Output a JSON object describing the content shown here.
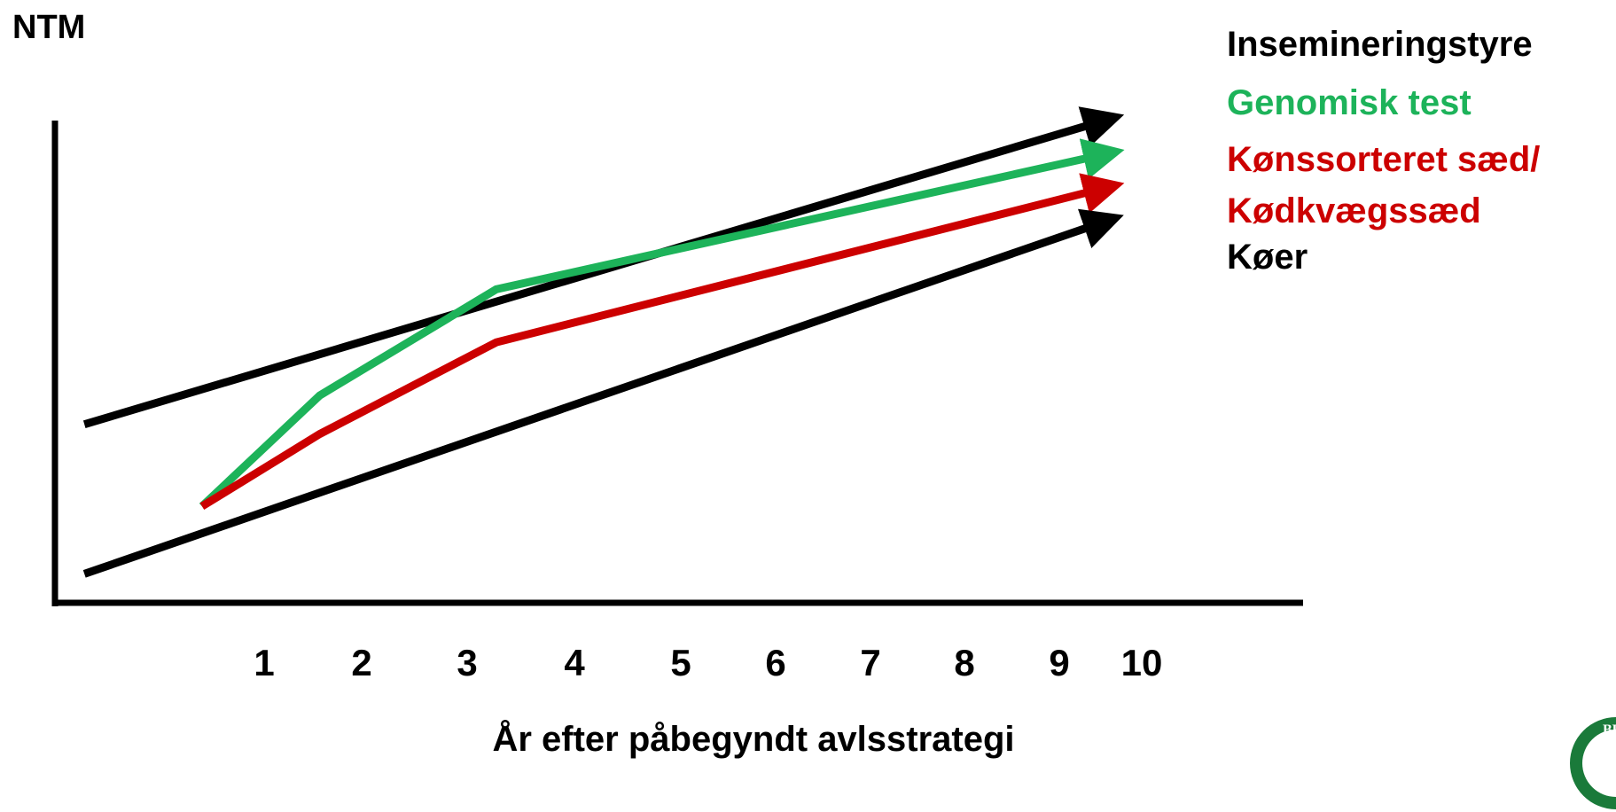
{
  "chart_data": {
    "type": "line",
    "ylabel": "NTM",
    "xlabel": "År efter påbegyndt avlsstrategi",
    "x_ticks": [
      "1",
      "2",
      "3",
      "4",
      "5",
      "6",
      "7",
      "8",
      "9",
      "10"
    ],
    "xlim": [
      0.2,
      11.3
    ],
    "ylim": [
      0,
      10
    ],
    "grid": false,
    "legend_placement": "right",
    "series": [
      {
        "name": "Insemineringstyre",
        "color": "#000000",
        "points": [
          [
            0.5,
            3.7
          ],
          [
            10.9,
            10.0
          ]
        ]
      },
      {
        "name": "Genomisk test",
        "color": "#1db35a",
        "points": [
          [
            1.7,
            2.0
          ],
          [
            2.9,
            4.3
          ],
          [
            4.7,
            6.5
          ],
          [
            10.9,
            9.3
          ]
        ]
      },
      {
        "name": "Kønssorteret sæd/ Kødkvægssæd",
        "color": "#cc0000",
        "points": [
          [
            1.7,
            2.0
          ],
          [
            2.9,
            3.5
          ],
          [
            4.7,
            5.4
          ],
          [
            10.9,
            8.6
          ]
        ]
      },
      {
        "name": "Køer",
        "color": "#000000",
        "points": [
          [
            0.5,
            0.6
          ],
          [
            10.9,
            7.9
          ]
        ]
      }
    ],
    "legend_lines": [
      {
        "text": "Insemineringstyre",
        "color": "#000000"
      },
      {
        "text": "Genomisk test",
        "color": "#1db35a"
      },
      {
        "text": "Kønssorteret sæd/",
        "color": "#cc0000"
      },
      {
        "text": "Kødkvægssæd",
        "color": "#cc0000"
      },
      {
        "text": "Køer",
        "color": "#000000"
      }
    ]
  },
  "logo": {
    "icon": "university-seal-icon",
    "text": "BRU",
    "color": "#1a7a3a"
  }
}
